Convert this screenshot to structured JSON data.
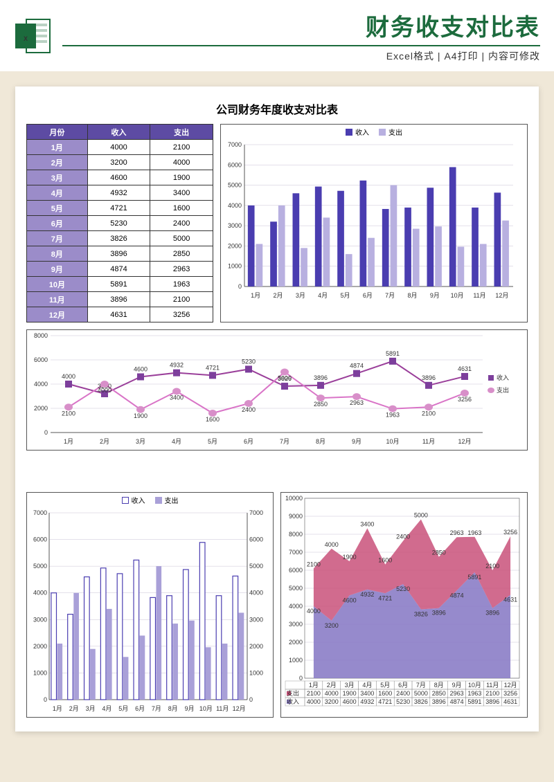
{
  "header": {
    "title": "财务收支对比表",
    "subtitle": "Excel格式 | A4打印 | 内容可修改"
  },
  "page": {
    "title": "公司财务年度收支对比表"
  },
  "table": {
    "headers": [
      "月份",
      "收入",
      "支出"
    ],
    "rows": [
      [
        "1月",
        4000,
        2100
      ],
      [
        "2月",
        3200,
        4000
      ],
      [
        "3月",
        4600,
        1900
      ],
      [
        "4月",
        4932,
        3400
      ],
      [
        "5月",
        4721,
        1600
      ],
      [
        "6月",
        5230,
        2400
      ],
      [
        "7月",
        3826,
        5000
      ],
      [
        "8月",
        3896,
        2850
      ],
      [
        "9月",
        4874,
        2963
      ],
      [
        "10月",
        5891,
        1963
      ],
      [
        "11月",
        3896,
        2100
      ],
      [
        "12月",
        4631,
        3256
      ]
    ]
  },
  "months": [
    "1月",
    "2月",
    "3月",
    "4月",
    "5月",
    "6月",
    "7月",
    "8月",
    "9月",
    "10月",
    "11月",
    "12月"
  ],
  "income": [
    4000,
    3200,
    4600,
    4932,
    4721,
    5230,
    3826,
    3896,
    4874,
    5891,
    3896,
    4631
  ],
  "expense": [
    2100,
    4000,
    1900,
    3400,
    1600,
    2400,
    5000,
    2850,
    2963,
    1963,
    2100,
    3256
  ],
  "series_labels": {
    "income": "收入",
    "expense": "支出"
  },
  "colors": {
    "income_bar": "#4a3db0",
    "expense_bar": "#b8b0e0",
    "income_line": "#9a3f9a",
    "expense_line": "#d974c7",
    "income_marker": "#7d3f9c",
    "expense_marker": "#d88fc9",
    "area_income": "#8b7dc7",
    "area_expense": "#c9517a",
    "grid": "#c8c2d6",
    "axis": "#555",
    "bar3_outline": "#4a3db0",
    "bar3_fill": "#a9a0d8"
  },
  "chart1": {
    "ymax": 7000,
    "ystep": 1000
  },
  "chart2": {
    "ymax": 8000,
    "ystep": 2000
  },
  "chart3": {
    "ymax": 7000,
    "ystep": 1000
  },
  "chart4": {
    "ymax": 10000,
    "ystep": 1000,
    "mini_labels": [
      "支出",
      "收入"
    ]
  }
}
